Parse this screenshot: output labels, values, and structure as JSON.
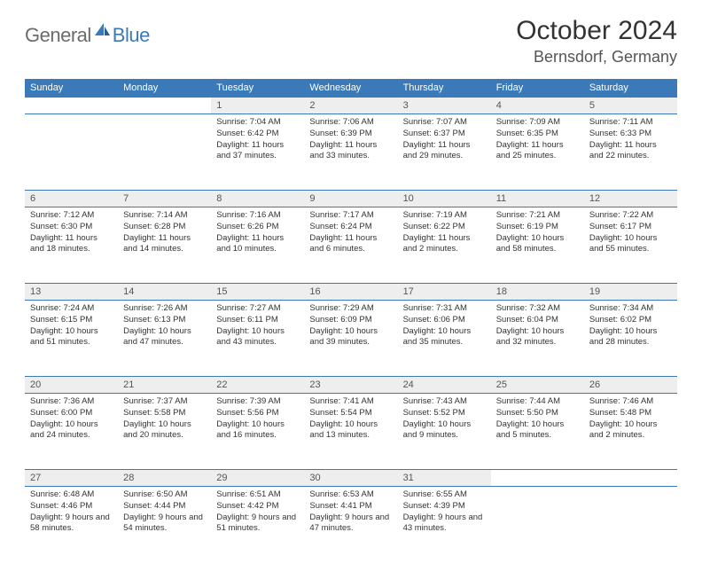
{
  "brand": {
    "part1": "General",
    "part2": "Blue"
  },
  "title": "October 2024",
  "location": "Bernsdorf, Germany",
  "colors": {
    "header_bg": "#3a7ab8",
    "daynum_bg": "#eeeeee",
    "border": "#3a7ab8",
    "text": "#333333",
    "logo_gray": "#6b6b6b",
    "logo_blue": "#3a7ab8"
  },
  "typography": {
    "title_fontsize": 30,
    "location_fontsize": 18,
    "header_fontsize": 11,
    "daynum_fontsize": 11,
    "cell_fontsize": 9.5
  },
  "weekday_headers": [
    "Sunday",
    "Monday",
    "Tuesday",
    "Wednesday",
    "Thursday",
    "Friday",
    "Saturday"
  ],
  "weeks": [
    [
      null,
      null,
      {
        "n": "1",
        "sunrise": "7:04 AM",
        "sunset": "6:42 PM",
        "dl": "11 hours and 37 minutes."
      },
      {
        "n": "2",
        "sunrise": "7:06 AM",
        "sunset": "6:39 PM",
        "dl": "11 hours and 33 minutes."
      },
      {
        "n": "3",
        "sunrise": "7:07 AM",
        "sunset": "6:37 PM",
        "dl": "11 hours and 29 minutes."
      },
      {
        "n": "4",
        "sunrise": "7:09 AM",
        "sunset": "6:35 PM",
        "dl": "11 hours and 25 minutes."
      },
      {
        "n": "5",
        "sunrise": "7:11 AM",
        "sunset": "6:33 PM",
        "dl": "11 hours and 22 minutes."
      }
    ],
    [
      {
        "n": "6",
        "sunrise": "7:12 AM",
        "sunset": "6:30 PM",
        "dl": "11 hours and 18 minutes."
      },
      {
        "n": "7",
        "sunrise": "7:14 AM",
        "sunset": "6:28 PM",
        "dl": "11 hours and 14 minutes."
      },
      {
        "n": "8",
        "sunrise": "7:16 AM",
        "sunset": "6:26 PM",
        "dl": "11 hours and 10 minutes."
      },
      {
        "n": "9",
        "sunrise": "7:17 AM",
        "sunset": "6:24 PM",
        "dl": "11 hours and 6 minutes."
      },
      {
        "n": "10",
        "sunrise": "7:19 AM",
        "sunset": "6:22 PM",
        "dl": "11 hours and 2 minutes."
      },
      {
        "n": "11",
        "sunrise": "7:21 AM",
        "sunset": "6:19 PM",
        "dl": "10 hours and 58 minutes."
      },
      {
        "n": "12",
        "sunrise": "7:22 AM",
        "sunset": "6:17 PM",
        "dl": "10 hours and 55 minutes."
      }
    ],
    [
      {
        "n": "13",
        "sunrise": "7:24 AM",
        "sunset": "6:15 PM",
        "dl": "10 hours and 51 minutes."
      },
      {
        "n": "14",
        "sunrise": "7:26 AM",
        "sunset": "6:13 PM",
        "dl": "10 hours and 47 minutes."
      },
      {
        "n": "15",
        "sunrise": "7:27 AM",
        "sunset": "6:11 PM",
        "dl": "10 hours and 43 minutes."
      },
      {
        "n": "16",
        "sunrise": "7:29 AM",
        "sunset": "6:09 PM",
        "dl": "10 hours and 39 minutes."
      },
      {
        "n": "17",
        "sunrise": "7:31 AM",
        "sunset": "6:06 PM",
        "dl": "10 hours and 35 minutes."
      },
      {
        "n": "18",
        "sunrise": "7:32 AM",
        "sunset": "6:04 PM",
        "dl": "10 hours and 32 minutes."
      },
      {
        "n": "19",
        "sunrise": "7:34 AM",
        "sunset": "6:02 PM",
        "dl": "10 hours and 28 minutes."
      }
    ],
    [
      {
        "n": "20",
        "sunrise": "7:36 AM",
        "sunset": "6:00 PM",
        "dl": "10 hours and 24 minutes."
      },
      {
        "n": "21",
        "sunrise": "7:37 AM",
        "sunset": "5:58 PM",
        "dl": "10 hours and 20 minutes."
      },
      {
        "n": "22",
        "sunrise": "7:39 AM",
        "sunset": "5:56 PM",
        "dl": "10 hours and 16 minutes."
      },
      {
        "n": "23",
        "sunrise": "7:41 AM",
        "sunset": "5:54 PM",
        "dl": "10 hours and 13 minutes."
      },
      {
        "n": "24",
        "sunrise": "7:43 AM",
        "sunset": "5:52 PM",
        "dl": "10 hours and 9 minutes."
      },
      {
        "n": "25",
        "sunrise": "7:44 AM",
        "sunset": "5:50 PM",
        "dl": "10 hours and 5 minutes."
      },
      {
        "n": "26",
        "sunrise": "7:46 AM",
        "sunset": "5:48 PM",
        "dl": "10 hours and 2 minutes."
      }
    ],
    [
      {
        "n": "27",
        "sunrise": "6:48 AM",
        "sunset": "4:46 PM",
        "dl": "9 hours and 58 minutes."
      },
      {
        "n": "28",
        "sunrise": "6:50 AM",
        "sunset": "4:44 PM",
        "dl": "9 hours and 54 minutes."
      },
      {
        "n": "29",
        "sunrise": "6:51 AM",
        "sunset": "4:42 PM",
        "dl": "9 hours and 51 minutes."
      },
      {
        "n": "30",
        "sunrise": "6:53 AM",
        "sunset": "4:41 PM",
        "dl": "9 hours and 47 minutes."
      },
      {
        "n": "31",
        "sunrise": "6:55 AM",
        "sunset": "4:39 PM",
        "dl": "9 hours and 43 minutes."
      },
      null,
      null
    ]
  ],
  "labels": {
    "sunrise": "Sunrise:",
    "sunset": "Sunset:",
    "daylight": "Daylight:"
  }
}
